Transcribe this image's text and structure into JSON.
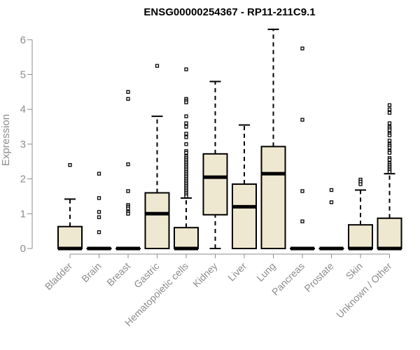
{
  "chart_data": {
    "type": "boxplot",
    "title": "ENSG00000254367 - RP11-211C9.1",
    "xlabel": "",
    "ylabel": "Expression",
    "ylim": [
      0,
      6.3
    ],
    "yticks": [
      "0",
      "1",
      "2",
      "3",
      "4",
      "5",
      "6"
    ],
    "grid": false,
    "legend": "none",
    "colors": {
      "box_fill": "#efe8d0",
      "stroke": "#000000",
      "axis_text": "#8c8c8c"
    },
    "categories": [
      "Bladder",
      "Brain",
      "Breast",
      "Gastric",
      "Hematopoietic cells",
      "Kidney",
      "Liver",
      "Lung",
      "Pancreas",
      "Prostate",
      "Skin",
      "Unknown / Other"
    ],
    "boxes": [
      {
        "category": "Bladder",
        "q1": 0,
        "median": 0,
        "q3": 0.63,
        "whisker_low": 0,
        "whisker_high": 1.42,
        "outliers": [
          2.4
        ]
      },
      {
        "category": "Brain",
        "q1": 0,
        "median": 0,
        "q3": 0,
        "whisker_low": 0,
        "whisker_high": 0,
        "outliers": [
          2.15,
          1.45,
          1.05,
          0.9,
          0.47
        ]
      },
      {
        "category": "Breast",
        "q1": 0,
        "median": 0,
        "q3": 0,
        "whisker_low": 0,
        "whisker_high": 0,
        "outliers": [
          4.5,
          4.3,
          2.42,
          1.65,
          1.25,
          1.2,
          1.15,
          1.05,
          1.0
        ]
      },
      {
        "category": "Gastric",
        "q1": 0,
        "median": 1.0,
        "q3": 1.6,
        "whisker_low": 0,
        "whisker_high": 3.8,
        "outliers": [
          5.25
        ]
      },
      {
        "category": "Hematopoietic cells",
        "q1": 0,
        "median": 0,
        "q3": 0.6,
        "whisker_low": 0,
        "whisker_high": 1.45,
        "outliers": [
          5.15,
          4.3,
          4.25,
          4.2,
          3.8,
          3.6,
          3.5,
          3.3,
          3.2,
          3.0,
          2.8,
          2.75,
          2.65,
          2.6,
          2.55,
          2.5,
          2.45,
          2.4,
          2.35,
          2.3,
          2.25,
          2.2,
          2.15,
          2.1,
          2.05,
          2.0,
          1.95,
          1.9,
          1.85,
          1.8,
          1.75,
          1.7,
          1.65,
          1.6,
          1.55,
          1.5
        ]
      },
      {
        "category": "Kidney",
        "q1": 0.97,
        "median": 2.05,
        "q3": 2.72,
        "whisker_low": 0,
        "whisker_high": 4.8,
        "outliers": []
      },
      {
        "category": "Liver",
        "q1": 0,
        "median": 1.2,
        "q3": 1.85,
        "whisker_low": 0,
        "whisker_high": 3.55,
        "outliers": []
      },
      {
        "category": "Lung",
        "q1": 0,
        "median": 2.15,
        "q3": 2.93,
        "whisker_low": 0,
        "whisker_high": 6.3,
        "outliers": []
      },
      {
        "category": "Pancreas",
        "q1": 0,
        "median": 0,
        "q3": 0,
        "whisker_low": 0,
        "whisker_high": 0,
        "outliers": [
          5.75,
          3.7,
          1.65,
          0.78
        ]
      },
      {
        "category": "Prostate",
        "q1": 0,
        "median": 0,
        "q3": 0,
        "whisker_low": 0,
        "whisker_high": 0,
        "outliers": [
          1.68,
          1.33
        ]
      },
      {
        "category": "Skin",
        "q1": 0,
        "median": 0,
        "q3": 0.68,
        "whisker_low": 0,
        "whisker_high": 1.68,
        "outliers": [
          1.98,
          1.92,
          1.85
        ]
      },
      {
        "category": "Unknown / Other",
        "q1": 0,
        "median": 0,
        "q3": 0.87,
        "whisker_low": 0,
        "whisker_high": 2.15,
        "outliers": [
          4.12,
          4.0,
          3.9,
          3.6,
          3.5,
          3.45,
          3.4,
          3.3,
          3.25,
          3.1,
          3.0,
          2.95,
          2.9,
          2.8,
          2.75,
          2.6,
          2.55,
          2.45,
          2.4,
          2.35,
          2.3,
          2.25,
          2.2
        ]
      }
    ]
  }
}
